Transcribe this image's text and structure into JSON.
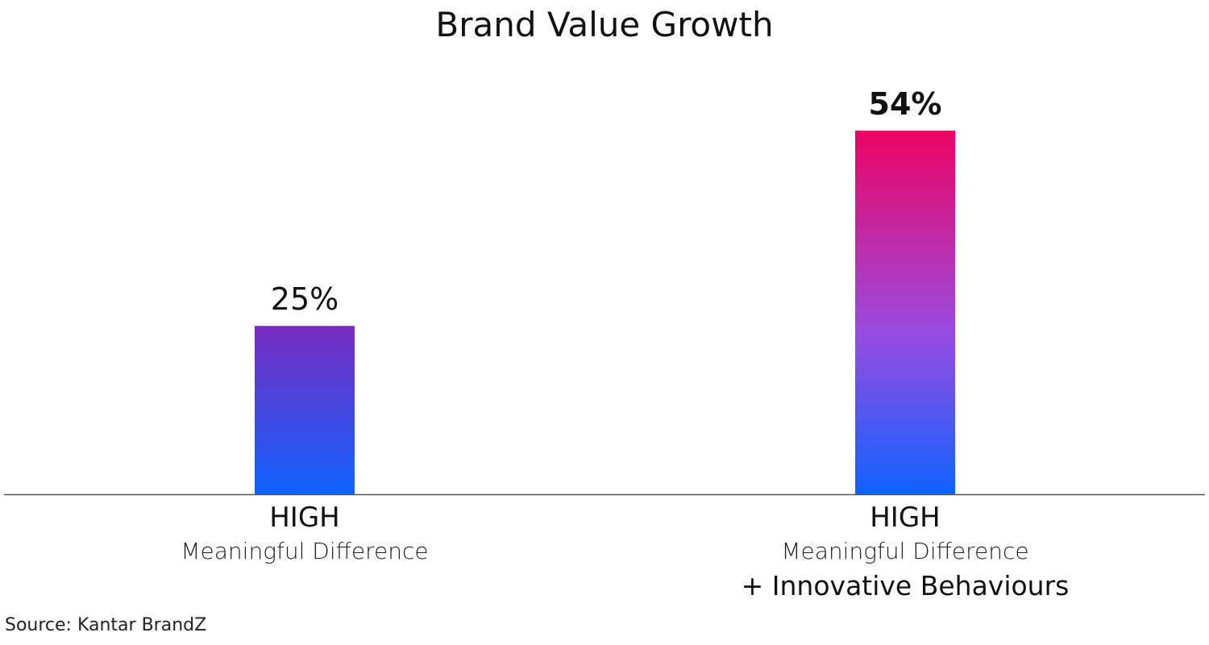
{
  "chart_data": {
    "type": "bar",
    "title": "Brand Value Growth",
    "categories": [
      {
        "main": "HIGH",
        "sub": "Meaningful Difference",
        "extra": ""
      },
      {
        "main": "HIGH",
        "sub": "Meaningful Difference",
        "extra": "+ Innovative Behaviours"
      }
    ],
    "values": [
      25,
      54
    ],
    "data_labels": [
      "25%",
      "54%"
    ],
    "unit": "%",
    "ylim": [
      0,
      60
    ],
    "grid": false,
    "gradients": [
      {
        "top": "#7A2CBF",
        "bottom": "#0F62FE"
      },
      {
        "top": "#EC0463",
        "middle": "#9A4BDF",
        "bottom": "#0F62FE"
      }
    ],
    "axis_color": "#555555",
    "source": "Source: Kantar BrandZ"
  }
}
